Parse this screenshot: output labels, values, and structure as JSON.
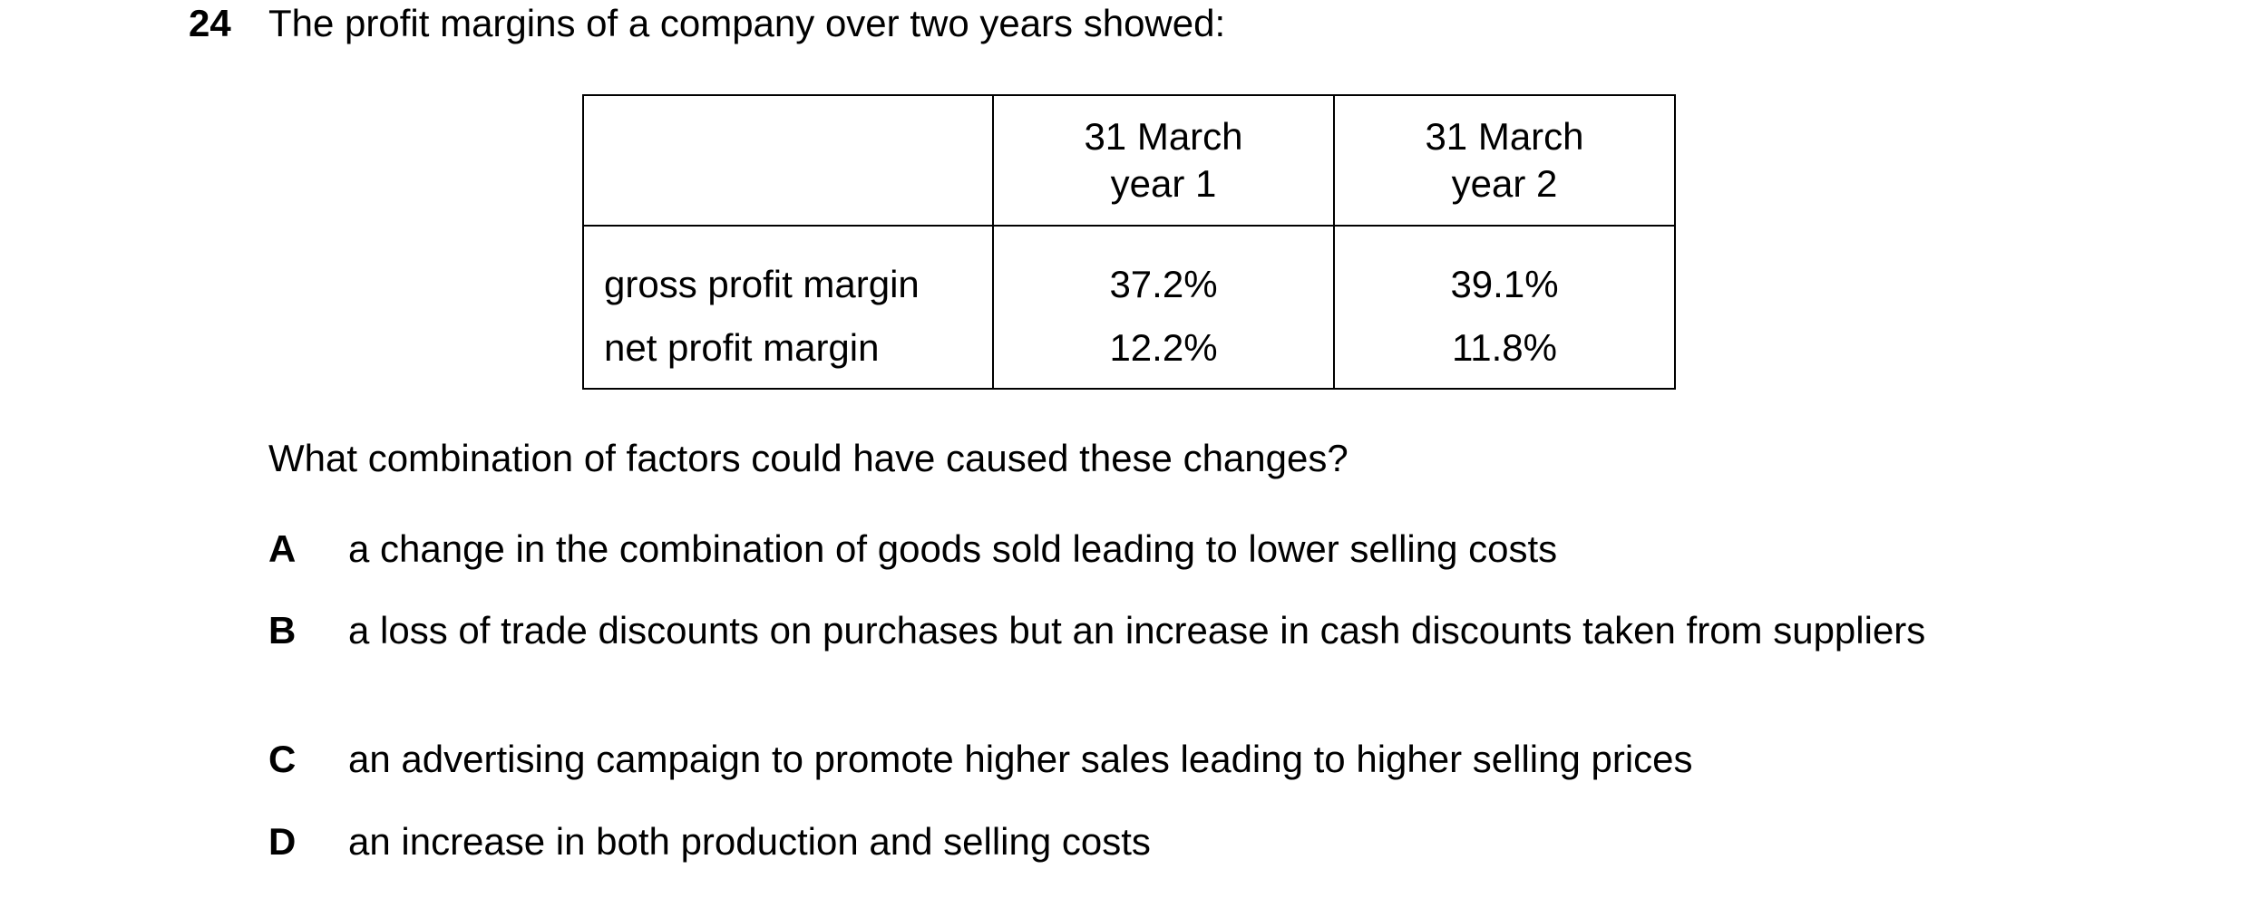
{
  "question": {
    "number": "24",
    "stem": "The profit margins of a company over two years showed:"
  },
  "table": {
    "header": {
      "blank": "",
      "col1_line1": "31 March",
      "col1_line2": "year 1",
      "col2_line1": "31 March",
      "col2_line2": "year 2"
    },
    "rows": [
      {
        "label": "gross profit margin",
        "year1": "37.2%",
        "year2": "39.1%"
      },
      {
        "label": "net profit margin",
        "year1": "12.2%",
        "year2": "11.8%"
      }
    ]
  },
  "prompt": "What combination of factors could have caused these changes?",
  "options": [
    {
      "letter": "A",
      "text": "a change in the combination of goods sold leading to lower selling costs"
    },
    {
      "letter": "B",
      "text": "a loss of trade discounts on purchases but an increase in cash discounts taken from suppliers"
    },
    {
      "letter": "C",
      "text": "an advertising campaign to promote higher sales leading to higher selling prices"
    },
    {
      "letter": "D",
      "text": "an increase in both production and selling costs"
    }
  ]
}
